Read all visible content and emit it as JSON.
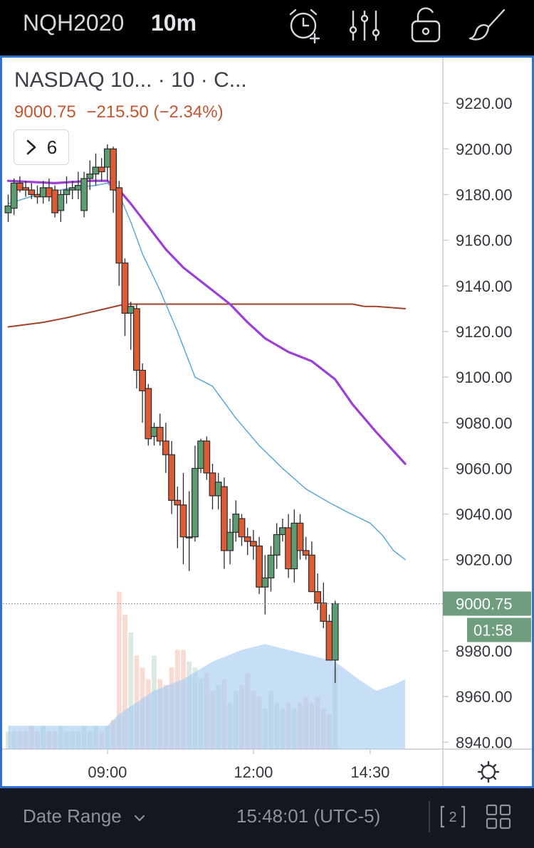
{
  "header": {
    "symbol": "NQH2020",
    "interval": "10m",
    "icons": [
      "alarm-plus-icon",
      "indicators-icon",
      "lock-icon",
      "brush-icon"
    ]
  },
  "legend": {
    "title": "NASDAQ 10... · 10 · C...",
    "last_price": "9000.75",
    "change": "−215.50 (−2.34%)",
    "collapsed_count": "6"
  },
  "price_tag": {
    "price": "9000.75",
    "countdown": "01:58"
  },
  "bottom": {
    "date_range_label": "Date Range",
    "clock": "15:48:01 (UTC-5)",
    "icons": [
      "compare-2-icon",
      "layout-grid-icon"
    ]
  },
  "colors": {
    "up": "#5d9b73",
    "down": "#df5b35",
    "ma_purple": "#9b3fd8",
    "ma_blue": "#5aa7d8",
    "vwap": "#a0412b",
    "volume_ma": "#a8cdf1",
    "frame_border": "#2f6fd1",
    "price_tag_bg": "#6f9e7f"
  },
  "chart_data": {
    "type": "candlestick",
    "title": "NASDAQ 10... · 10 · C...",
    "y_ticks": [
      9220,
      9200,
      9180,
      9160,
      9140,
      9120,
      9100,
      9080,
      9060,
      9040,
      9020,
      9000,
      8980,
      8960,
      8940
    ],
    "ylim": [
      8937,
      9240
    ],
    "x_ticks": [
      {
        "label": "09:00",
        "index": 17
      },
      {
        "label": "12:00",
        "index": 42
      },
      {
        "label": "14:30",
        "index": 62
      }
    ],
    "ohlc": [
      [
        9172,
        9180,
        9168,
        9175
      ],
      [
        9174,
        9187,
        9171,
        9185
      ],
      [
        9185,
        9188,
        9181,
        9182
      ],
      [
        9183,
        9186,
        9179,
        9182
      ],
      [
        9182,
        9185,
        9178,
        9180
      ],
      [
        9180,
        9184,
        9176,
        9179
      ],
      [
        9179,
        9186,
        9176,
        9183
      ],
      [
        9183,
        9187,
        9177,
        9179
      ],
      [
        9182,
        9184,
        9170,
        9172
      ],
      [
        9173,
        9182,
        9168,
        9180
      ],
      [
        9180,
        9188,
        9176,
        9182
      ],
      [
        9182,
        9186,
        9178,
        9183
      ],
      [
        9182,
        9190,
        9178,
        9184
      ],
      [
        9173,
        9190,
        9170,
        9187
      ],
      [
        9187,
        9195,
        9182,
        9189
      ],
      [
        9189,
        9198,
        9184,
        9192
      ],
      [
        9192,
        9196,
        9186,
        9190
      ],
      [
        9192,
        9202,
        9186,
        9200
      ],
      [
        9200,
        9201,
        9172,
        9182
      ],
      [
        9183,
        9186,
        9140,
        9150
      ],
      [
        9150,
        9152,
        9118,
        9128
      ],
      [
        9128,
        9133,
        9112,
        9131
      ],
      [
        9130,
        9132,
        9095,
        9103
      ],
      [
        9103,
        9106,
        9080,
        9094
      ],
      [
        9095,
        9097,
        9070,
        9073
      ],
      [
        9074,
        9080,
        9070,
        9078
      ],
      [
        9078,
        9084,
        9070,
        9072
      ],
      [
        9072,
        9080,
        9058,
        9066
      ],
      [
        9066,
        9072,
        9040,
        9046
      ],
      [
        9046,
        9052,
        9025,
        9044
      ],
      [
        9044,
        9058,
        9018,
        9030
      ],
      [
        9030,
        9050,
        9015,
        9030
      ],
      [
        9030,
        9070,
        9028,
        9060
      ],
      [
        9060,
        9073,
        9058,
        9072
      ],
      [
        9072,
        9074,
        9055,
        9058
      ],
      [
        9058,
        9062,
        9042,
        9048
      ],
      [
        9048,
        9058,
        9042,
        9054
      ],
      [
        9052,
        9056,
        9016,
        9024
      ],
      [
        9024,
        9038,
        9018,
        9032
      ],
      [
        9032,
        9046,
        9028,
        9040
      ],
      [
        9038,
        9040,
        9026,
        9030
      ],
      [
        9030,
        9034,
        9022,
        9028
      ],
      [
        9028,
        9033,
        9020,
        9026
      ],
      [
        9026,
        9030,
        9005,
        9008
      ],
      [
        9008,
        9022,
        8996,
        9012
      ],
      [
        9012,
        9026,
        9006,
        9022
      ],
      [
        9022,
        9036,
        9016,
        9031
      ],
      [
        9031,
        9038,
        9028,
        9034
      ],
      [
        9034,
        9040,
        9012,
        9016
      ],
      [
        9016,
        9042,
        9010,
        9036
      ],
      [
        9036,
        9040,
        9020,
        9024
      ],
      [
        9024,
        9030,
        9020,
        9022
      ],
      [
        9022,
        9028,
        9008,
        9006
      ],
      [
        9006,
        9014,
        8998,
        9001
      ],
      [
        9001,
        9010,
        8990,
        8993
      ],
      [
        8993,
        8996,
        8976,
        8976
      ],
      [
        8976,
        9002,
        8966,
        9000.75
      ]
    ],
    "ma_purple": [
      [
        0,
        9186
      ],
      [
        8,
        9185
      ],
      [
        14,
        9186
      ],
      [
        17,
        9186
      ],
      [
        19,
        9182
      ],
      [
        21,
        9176
      ],
      [
        24,
        9166
      ],
      [
        27,
        9156
      ],
      [
        30,
        9148
      ],
      [
        33,
        9142
      ],
      [
        38,
        9132
      ],
      [
        41,
        9124
      ],
      [
        44,
        9117
      ],
      [
        48,
        9111
      ],
      [
        52,
        9107
      ],
      [
        56,
        9099
      ],
      [
        59,
        9088
      ],
      [
        63,
        9076
      ],
      [
        68,
        9062
      ]
    ],
    "ma_blue": [
      [
        0,
        9176
      ],
      [
        5,
        9180
      ],
      [
        11,
        9183
      ],
      [
        15,
        9184
      ],
      [
        17,
        9185
      ],
      [
        19,
        9180
      ],
      [
        21,
        9168
      ],
      [
        23,
        9154
      ],
      [
        26,
        9138
      ],
      [
        29,
        9120
      ],
      [
        32,
        9100
      ],
      [
        35,
        9096
      ],
      [
        39,
        9082
      ],
      [
        43,
        9070
      ],
      [
        47,
        9060
      ],
      [
        51,
        9051
      ],
      [
        55,
        9045
      ],
      [
        58,
        9041
      ],
      [
        62,
        9036
      ],
      [
        64,
        9031
      ],
      [
        66,
        9024
      ],
      [
        68,
        9020
      ]
    ],
    "vwap": [
      [
        0,
        9122
      ],
      [
        6,
        9124
      ],
      [
        10,
        9126
      ],
      [
        15,
        9129
      ],
      [
        20,
        9132
      ],
      [
        25,
        9132
      ],
      [
        35,
        9132
      ],
      [
        45,
        9132
      ],
      [
        59,
        9132
      ],
      [
        61,
        9131
      ],
      [
        63,
        9131
      ],
      [
        68,
        9130
      ]
    ],
    "volume": [
      3,
      3,
      3,
      3,
      4,
      3,
      4,
      3,
      3,
      4,
      3,
      3,
      3,
      4,
      3,
      4,
      3,
      4,
      5,
      27,
      23,
      20,
      16,
      14,
      12,
      16,
      12,
      11,
      14,
      17,
      17,
      15,
      14,
      12,
      13,
      10,
      11,
      12,
      8,
      10,
      11,
      13,
      10,
      9,
      7,
      10,
      8,
      7,
      8,
      7,
      8,
      9,
      8,
      9,
      7,
      6,
      14
    ],
    "volume_ma": [
      [
        0,
        4
      ],
      [
        10,
        4
      ],
      [
        17,
        4
      ],
      [
        19,
        6
      ],
      [
        22,
        8
      ],
      [
        25,
        10
      ],
      [
        30,
        12
      ],
      [
        35,
        15
      ],
      [
        40,
        17
      ],
      [
        44,
        18
      ],
      [
        48,
        17
      ],
      [
        52,
        16
      ],
      [
        56,
        15
      ],
      [
        60,
        12
      ],
      [
        63,
        10
      ],
      [
        66,
        11
      ],
      [
        68,
        12
      ]
    ]
  }
}
